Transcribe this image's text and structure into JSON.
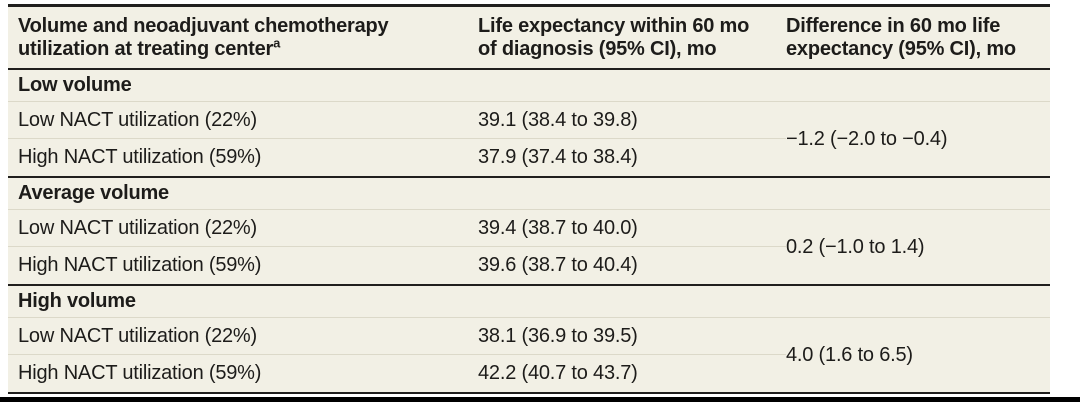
{
  "colors": {
    "cream": "#f2f0e5",
    "rule_dark": "#201f1d",
    "rule_light": "#dcd9c9",
    "text": "#1d1c1a"
  },
  "table": {
    "header": {
      "col1_line1": "Volume and neoadjuvant chemotherapy",
      "col1_line2": "utilization at treating center",
      "col1_footnote": "a",
      "col2_line1": "Life expectancy within 60 mo",
      "col2_line2": "of diagnosis (95% CI), mo",
      "col3_line1": "Difference in 60 mo life",
      "col3_line2": "expectancy (95% CI), mo"
    },
    "sections": [
      {
        "label": "Low volume",
        "rows": [
          {
            "label": "Low NACT utilization (22%)",
            "value": "39.1 (38.4 to 39.8)"
          },
          {
            "label": "High NACT utilization (59%)",
            "value": "37.9 (37.4 to 38.4)"
          }
        ],
        "difference": "−1.2 (−2.0 to −0.4)"
      },
      {
        "label": "Average volume",
        "rows": [
          {
            "label": "Low NACT utilization (22%)",
            "value": "39.4 (38.7 to 40.0)"
          },
          {
            "label": "High NACT utilization (59%)",
            "value": "39.6 (38.7 to 40.4)"
          }
        ],
        "difference": "0.2 (−1.0 to 1.4)"
      },
      {
        "label": "High volume",
        "rows": [
          {
            "label": "Low NACT utilization (22%)",
            "value": "38.1 (36.9 to 39.5)"
          },
          {
            "label": "High NACT utilization (59%)",
            "value": "42.2 (40.7 to 43.7)"
          }
        ],
        "difference": "4.0 (1.6 to 6.5)"
      }
    ]
  }
}
